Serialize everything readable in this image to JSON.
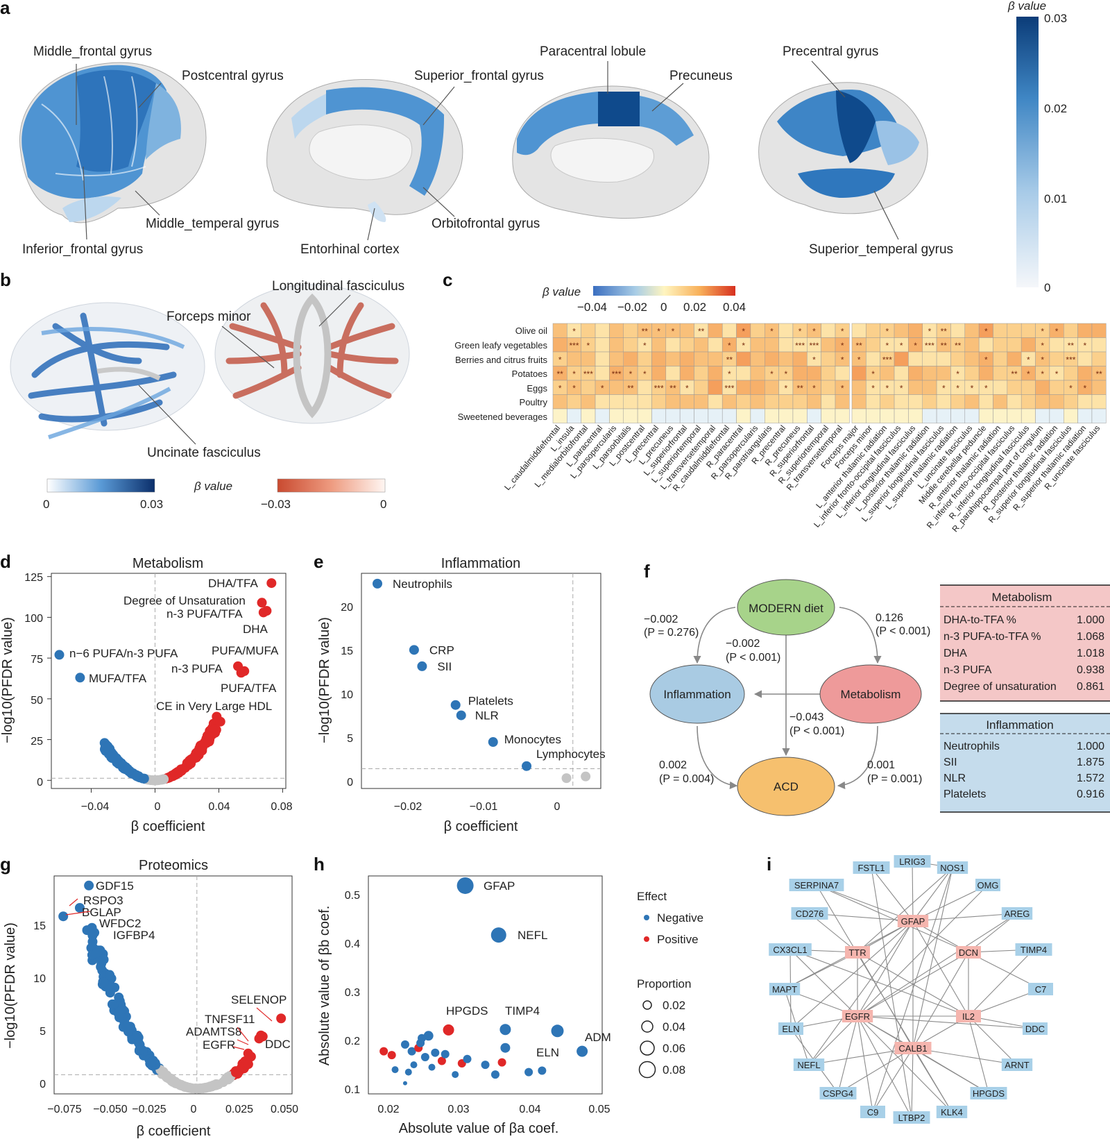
{
  "panels": {
    "a": {
      "letter": "a",
      "colorbar": {
        "title": "β value",
        "ticks": [
          "0.03",
          "0.02",
          "0.01",
          "0"
        ],
        "vmin": 0,
        "vmax": 0.03
      },
      "labels": [
        "Middle_frontal gyrus",
        "Postcentral gyrus",
        "Middle_temperal gyrus",
        "Inferior_frontal gyrus",
        "Superior_frontal gyrus",
        "Paracentral lobule",
        "Precuneus",
        "Entorhinal cortex",
        "Orbitofrontal gyrus",
        "Precentral gyrus",
        "Superior_temperal gyrus"
      ]
    },
    "b": {
      "letter": "b",
      "labels": [
        "Longitudinal fasciculus",
        "Forceps minor",
        "Uncinate fasciculus"
      ],
      "colorbar_title": "β value",
      "blue_bar": {
        "min": "0",
        "max": "0.03"
      },
      "red_bar": {
        "min": "−0.03",
        "max": "0"
      }
    },
    "c": {
      "letter": "c",
      "colorbar": {
        "title": "β value",
        "ticks": [
          "−0.04",
          "−0.02",
          "0",
          "0.02",
          "0.04"
        ]
      },
      "rows": [
        "Olive oil",
        "Green leafy vegetables",
        "Berries and citrus fruits",
        "Potatoes",
        "Eggs",
        "Poultry",
        "Sweetened beverages"
      ],
      "cols_left": [
        "L_caudalmiddlefrontal",
        "L_insula",
        "L_medialorbitofrontal",
        "L_paracentral",
        "L_parsopercularis",
        "L_parsorbitalis",
        "L_postcentral",
        "L_precentral",
        "L_precuneus",
        "L_superiorfrontal",
        "L_superiortemporal",
        "L_transversetemporal",
        "R_caudalmiddlefrontal",
        "R_paracentral",
        "R_parsopercularis",
        "R_parstriangularis",
        "R_precentral",
        "R_precuneus",
        "R_superiorfrontal",
        "R_superiortemporal",
        "R_transversetemporal"
      ],
      "cols_right": [
        "Forceps major",
        "Forceps minor",
        "L_anterior thalamic radiation",
        "L_inferior fronto-occipital fasciculus",
        "L_inferior longitudinal fasciculus",
        "L_posterior thalamic radiation",
        "L_superior longitudinal fasciculus",
        "L_superior thalamic radiation",
        "L_uncinate fasciculus",
        "Middle cerebellar peduncle",
        "R_anterior thalamic radiation",
        "R_inferior fronto-occipital fasciculus",
        "R_inferior longitudinal fasciculus",
        "R_parahippocampal part of cingulum",
        "R_posterior thalamic radiation",
        "R_superior longitudinal fasciculus",
        "R_superior thalamic radiation",
        "R_uncinate fasciculus"
      ]
    },
    "d": {
      "letter": "d",
      "chart_data": {
        "type": "scatter",
        "title": "Metabolism",
        "xlabel": "β coefficient",
        "ylabel": "−log10(PFDR value)",
        "xlim": [
          -0.065,
          0.082
        ],
        "ylim": [
          -5,
          127
        ],
        "xticks": [
          "−0.04",
          "0",
          "0.04",
          "0.08"
        ],
        "yticks": [
          "0",
          "25",
          "50",
          "75",
          "100",
          "125"
        ],
        "labeled_points": [
          {
            "label": "DHA/TFA",
            "x": 0.073,
            "y": 121,
            "effect": "positive"
          },
          {
            "label": "Degree of Unsaturation",
            "x": 0.067,
            "y": 109,
            "effect": "positive"
          },
          {
            "label": "n-3 PUFA/TFA",
            "x": 0.068,
            "y": 103,
            "effect": "positive"
          },
          {
            "label": "DHA",
            "x": 0.07,
            "y": 104,
            "effect": "positive"
          },
          {
            "label": "n−6 PUFA/n-3 PUFA",
            "x": -0.06,
            "y": 77,
            "effect": "negative"
          },
          {
            "label": "MUFA/TFA",
            "x": -0.047,
            "y": 63,
            "effect": "negative"
          },
          {
            "label": "PUFA/MUFA",
            "x": 0.052,
            "y": 70,
            "effect": "positive"
          },
          {
            "label": "n-3 PUFA",
            "x": 0.054,
            "y": 66,
            "effect": "positive"
          },
          {
            "label": "PUFA/TFA",
            "x": 0.056,
            "y": 67,
            "effect": "positive"
          },
          {
            "label": "CE in Very Large HDL",
            "x": 0.041,
            "y": 36,
            "effect": "positive"
          }
        ]
      }
    },
    "e": {
      "letter": "e",
      "chart_data": {
        "type": "scatter",
        "title": "Inflammation",
        "xlabel": "β coefficient",
        "ylabel": "−log10(PFDR value)",
        "xlim": [
          -0.0265,
          0.0035
        ],
        "ylim": [
          -1,
          24
        ],
        "xticks": [
          "−0.02",
          "−0.01",
          "0"
        ],
        "yticks": [
          "0",
          "5",
          "10",
          "15",
          "20"
        ],
        "points": [
          {
            "label": "Neutrophils",
            "x": -0.0245,
            "y": 22.8,
            "effect": "negative"
          },
          {
            "label": "CRP",
            "x": -0.0199,
            "y": 15.1,
            "effect": "negative"
          },
          {
            "label": "SII",
            "x": -0.0189,
            "y": 13.2,
            "effect": "negative"
          },
          {
            "label": "Platelets",
            "x": -0.0147,
            "y": 8.7,
            "effect": "negative"
          },
          {
            "label": "NLR",
            "x": -0.014,
            "y": 7.5,
            "effect": "negative"
          },
          {
            "label": "Monocytes",
            "x": -0.01,
            "y": 4.4,
            "effect": "negative"
          },
          {
            "label": "Lymphocytes",
            "x": -0.0058,
            "y": 1.6,
            "effect": "negative"
          },
          {
            "label": "",
            "x": -0.0008,
            "y": 0.2,
            "effect": "ns"
          },
          {
            "label": "",
            "x": 0.0016,
            "y": 0.4,
            "effect": "ns"
          }
        ]
      }
    },
    "f": {
      "letter": "f",
      "nodes": {
        "diet": "MODERN diet",
        "inflammation": "Inflammation",
        "metabolism": "Metabolism",
        "acd": "ACD"
      },
      "paths": {
        "diet_infl": {
          "coef": "−0.002",
          "p": "(P = 0.276)"
        },
        "diet_meta": {
          "coef": "0.126",
          "p": "(P < 0.001)"
        },
        "meta_infl": {
          "coef": "−0.002",
          "p": "(P < 0.001)"
        },
        "diet_acd": {
          "coef": "−0.043",
          "p": "(P < 0.001)"
        },
        "infl_acd": {
          "coef": "0.002",
          "p": "(P = 0.004)"
        },
        "meta_acd": {
          "coef": "0.001",
          "p": "(P = 0.001)"
        }
      },
      "metabolism_table": {
        "title": "Metabolism",
        "rows": [
          {
            "name": "DHA-to-TFA %",
            "value": "1.000"
          },
          {
            "name": "n-3 PUFA-to-TFA %",
            "value": "1.068"
          },
          {
            "name": "DHA",
            "value": "1.018"
          },
          {
            "name": "n-3 PUFA",
            "value": "0.938"
          },
          {
            "name": "Degree of unsaturation",
            "value": "0.861"
          }
        ]
      },
      "inflammation_table": {
        "title": "Inflammation",
        "rows": [
          {
            "name": "Neutrophils",
            "value": "1.000"
          },
          {
            "name": "SII",
            "value": "1.875"
          },
          {
            "name": "NLR",
            "value": "1.572"
          },
          {
            "name": "Platelets",
            "value": "0.916"
          }
        ]
      }
    },
    "g": {
      "letter": "g",
      "chart_data": {
        "type": "scatter",
        "title": "Proteomics",
        "xlabel": "β coefficient",
        "ylabel": "−log10(PFDR value)",
        "xlim": [
          -0.078,
          0.052
        ],
        "ylim": [
          -0.5,
          20
        ],
        "xticks": [
          "−0.075",
          "−0.050",
          "−0.025",
          "0",
          "0.025",
          "0.050"
        ],
        "yticks": [
          "0",
          "5",
          "10",
          "15"
        ],
        "labeled_points": [
          {
            "label": "GDF15",
            "x": -0.059,
            "y": 19.1,
            "effect": "negative"
          },
          {
            "label": "RSPO3",
            "x": -0.064,
            "y": 17.0,
            "effect": "negative"
          },
          {
            "label": "BGLAP",
            "x": -0.073,
            "y": 16.2,
            "effect": "negative"
          },
          {
            "label": "WFDC2",
            "x": -0.06,
            "y": 14.9,
            "effect": "negative"
          },
          {
            "label": "IGFBP4",
            "x": -0.057,
            "y": 14.4,
            "effect": "negative"
          },
          {
            "label": "SELENOP",
            "x": 0.046,
            "y": 6.6,
            "effect": "positive"
          },
          {
            "label": "TNFSF11",
            "x": 0.035,
            "y": 5.0,
            "effect": "positive"
          },
          {
            "label": "ADAMTS8",
            "x": 0.034,
            "y": 4.7,
            "effect": "positive"
          },
          {
            "label": "EGFR",
            "x": 0.028,
            "y": 3.3,
            "effect": "positive"
          },
          {
            "label": "DDC",
            "x": 0.036,
            "y": 4.9,
            "effect": "positive"
          }
        ]
      }
    },
    "h": {
      "letter": "h",
      "chart_data": {
        "type": "scatter",
        "xlabel": "Absolute value of βa coef.",
        "ylabel": "Absolute value of βb coef.",
        "xlim": [
          0.017,
          0.052
        ],
        "ylim": [
          0.09,
          0.54
        ],
        "xticks": [
          "0.02",
          "0.03",
          "0.04",
          "0.05"
        ],
        "yticks": [
          "0.1",
          "0.2",
          "0.3",
          "0.4",
          "0.5"
        ],
        "legend": {
          "effect_title": "Effect",
          "effect": [
            "Negative",
            "Positive"
          ],
          "proportion_title": "Proportion",
          "proportion": [
            "0.02",
            "0.04",
            "0.06",
            "0.08"
          ]
        },
        "labels": [
          "GFAP",
          "NEFL",
          "HPGDS",
          "TIMP4",
          "ELN",
          "ADM"
        ]
      }
    },
    "i": {
      "letter": "i",
      "nodes_blue": [
        "FSTL1",
        "LRIG3",
        "NOS1",
        "SERPINA7",
        "OMG",
        "CD276",
        "AREG",
        "CX3CL1",
        "TIMP4",
        "MAPT",
        "C7",
        "ELN",
        "DDC",
        "NEFL",
        "ARNT",
        "CSPG4",
        "HPGDS",
        "C9",
        "LTBP2",
        "KLK4"
      ],
      "nodes_red": [
        "GFAP",
        "TTR",
        "DCN",
        "EGFR",
        "IL2",
        "CALB1"
      ]
    }
  }
}
